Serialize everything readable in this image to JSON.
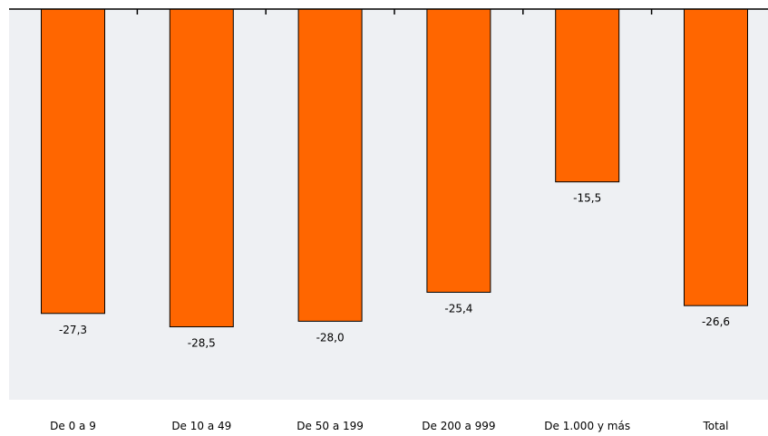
{
  "chart_data": {
    "type": "bar",
    "categories": [
      "De 0 a 9",
      "De 10 a 49",
      "De 50 a 199",
      "De 200 a 999",
      "De 1.000 y más",
      "Total"
    ],
    "values": [
      -27.3,
      -28.5,
      -28.0,
      -25.4,
      -15.5,
      -26.6
    ],
    "value_labels": [
      "-27,3",
      "-28,5",
      "-28,0",
      "-25,4",
      "-15,5",
      "-26,6"
    ],
    "title": "",
    "xlabel": "",
    "ylabel": "",
    "ylim": [
      -35,
      0
    ],
    "grid": false,
    "legend": "none",
    "colors": {
      "bar": "#ff6600",
      "plot_background": "#eef0f3"
    }
  }
}
